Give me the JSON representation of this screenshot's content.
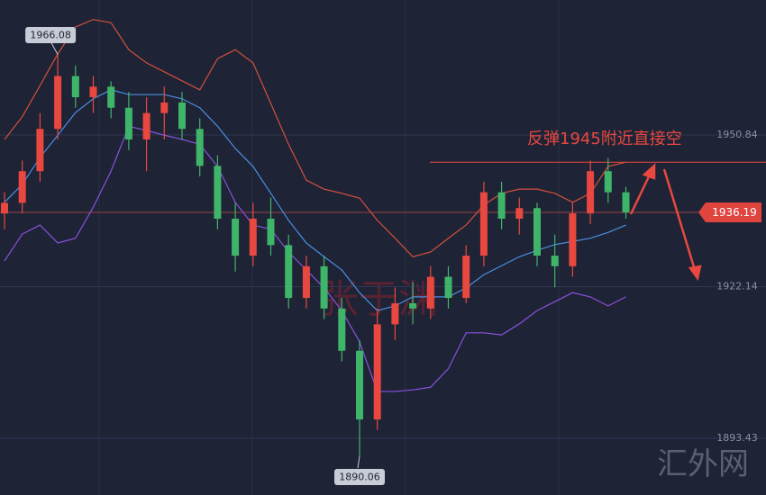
{
  "chart_data": {
    "type": "candlestick",
    "open": [
      1936,
      1938,
      1944,
      1952,
      1962,
      1958,
      1960,
      1956,
      1950,
      1955,
      1957,
      1952,
      1945,
      1935,
      1928,
      1935,
      1930,
      1920,
      1926,
      1918,
      1910,
      1897,
      1915,
      1919,
      1918,
      1924,
      1920,
      1928,
      1940,
      1935,
      1937,
      1928,
      1926,
      1936,
      1944,
      1940
    ],
    "high": [
      1940,
      1946,
      1955,
      1966.08,
      1964,
      1962,
      1961,
      1959,
      1958,
      1960,
      1959,
      1954,
      1947,
      1938,
      1938,
      1939,
      1932,
      1928,
      1928,
      1920,
      1912,
      1918,
      1922,
      1923,
      1926,
      1926,
      1930,
      1942,
      1942,
      1939,
      1938,
      1932,
      1938,
      1946,
      1946.5,
      1941
    ],
    "low": [
      1933,
      1936,
      1942,
      1950,
      1956,
      1955,
      1954,
      1948,
      1944,
      1950,
      1950,
      1943,
      1933,
      1925,
      1926,
      1928,
      1918,
      1918,
      1916,
      1908,
      1890.06,
      1895,
      1912,
      1915,
      1916,
      1918,
      1919,
      1926,
      1933,
      1932,
      1926,
      1922,
      1924,
      1934,
      1938,
      1935
    ],
    "close": [
      1938,
      1944,
      1952,
      1962,
      1958,
      1960,
      1956,
      1950,
      1955,
      1957,
      1952,
      1945,
      1935,
      1928,
      1935,
      1930,
      1920,
      1926,
      1918,
      1910,
      1897,
      1915,
      1919,
      1918,
      1924,
      1920,
      1928,
      1940,
      1935,
      1937,
      1928,
      1926,
      1936,
      1944,
      1940,
      1936.19
    ],
    "up_color": "#e8483f",
    "down_color": "#3fb56a",
    "lines": [
      {
        "color": "#d4503c",
        "values": [
          1950.0,
          1954.3,
          1960.2,
          1966.2,
          1971.3,
          1972.7,
          1972.1,
          1967.0,
          1964.5,
          1962.8,
          1961.1,
          1959.4,
          1965.3,
          1967.0,
          1964.5,
          1956.8,
          1949.1,
          1942.3,
          1940.6,
          1939.8,
          1938.9,
          1934.7,
          1931.3,
          1927.8,
          1928.7,
          1931.3,
          1933.8,
          1937.6,
          1939.8,
          1940.6,
          1940.6,
          1939.8,
          1938.1,
          1939.8,
          1944.9,
          1945.7
        ]
      },
      {
        "color": "#4a8fe0",
        "values": [
          1938.1,
          1941.5,
          1946.6,
          1950.8,
          1955.1,
          1957.7,
          1959.4,
          1958.5,
          1958.5,
          1958.5,
          1957.7,
          1956.0,
          1952.5,
          1948.3,
          1944.9,
          1939.8,
          1934.7,
          1930.4,
          1927.8,
          1925.3,
          1921.0,
          1917.6,
          1918.5,
          1920.2,
          1920.2,
          1920.2,
          1921.9,
          1924.4,
          1926.1,
          1927.8,
          1929.0,
          1930.1,
          1930.7,
          1931.3,
          1932.4,
          1933.8
        ]
      },
      {
        "color": "#8a52dc",
        "values": [
          1927.0,
          1932.1,
          1933.8,
          1930.4,
          1931.3,
          1937.2,
          1944.0,
          1952.5,
          1951.7,
          1950.8,
          1950.0,
          1949.1,
          1944.9,
          1938.1,
          1933.8,
          1933.0,
          1928.7,
          1925.3,
          1921.9,
          1917.6,
          1911.7,
          1902.3,
          1902.3,
          1902.6,
          1903.1,
          1906.6,
          1913.4,
          1913.4,
          1913.0,
          1915.1,
          1917.6,
          1919.3,
          1921.0,
          1920.2,
          1918.5,
          1920.2
        ]
      }
    ],
    "ylim": [
      1882.7,
      1976.4
    ],
    "yticks": [
      1950.84,
      1922.14,
      1893.43
    ],
    "grid": true,
    "level": 1945.7,
    "level_color": "#e8483f",
    "annotation": "反弹1945附近直接空",
    "watermark": "张于渊",
    "site_mark": "汇外网"
  }
}
